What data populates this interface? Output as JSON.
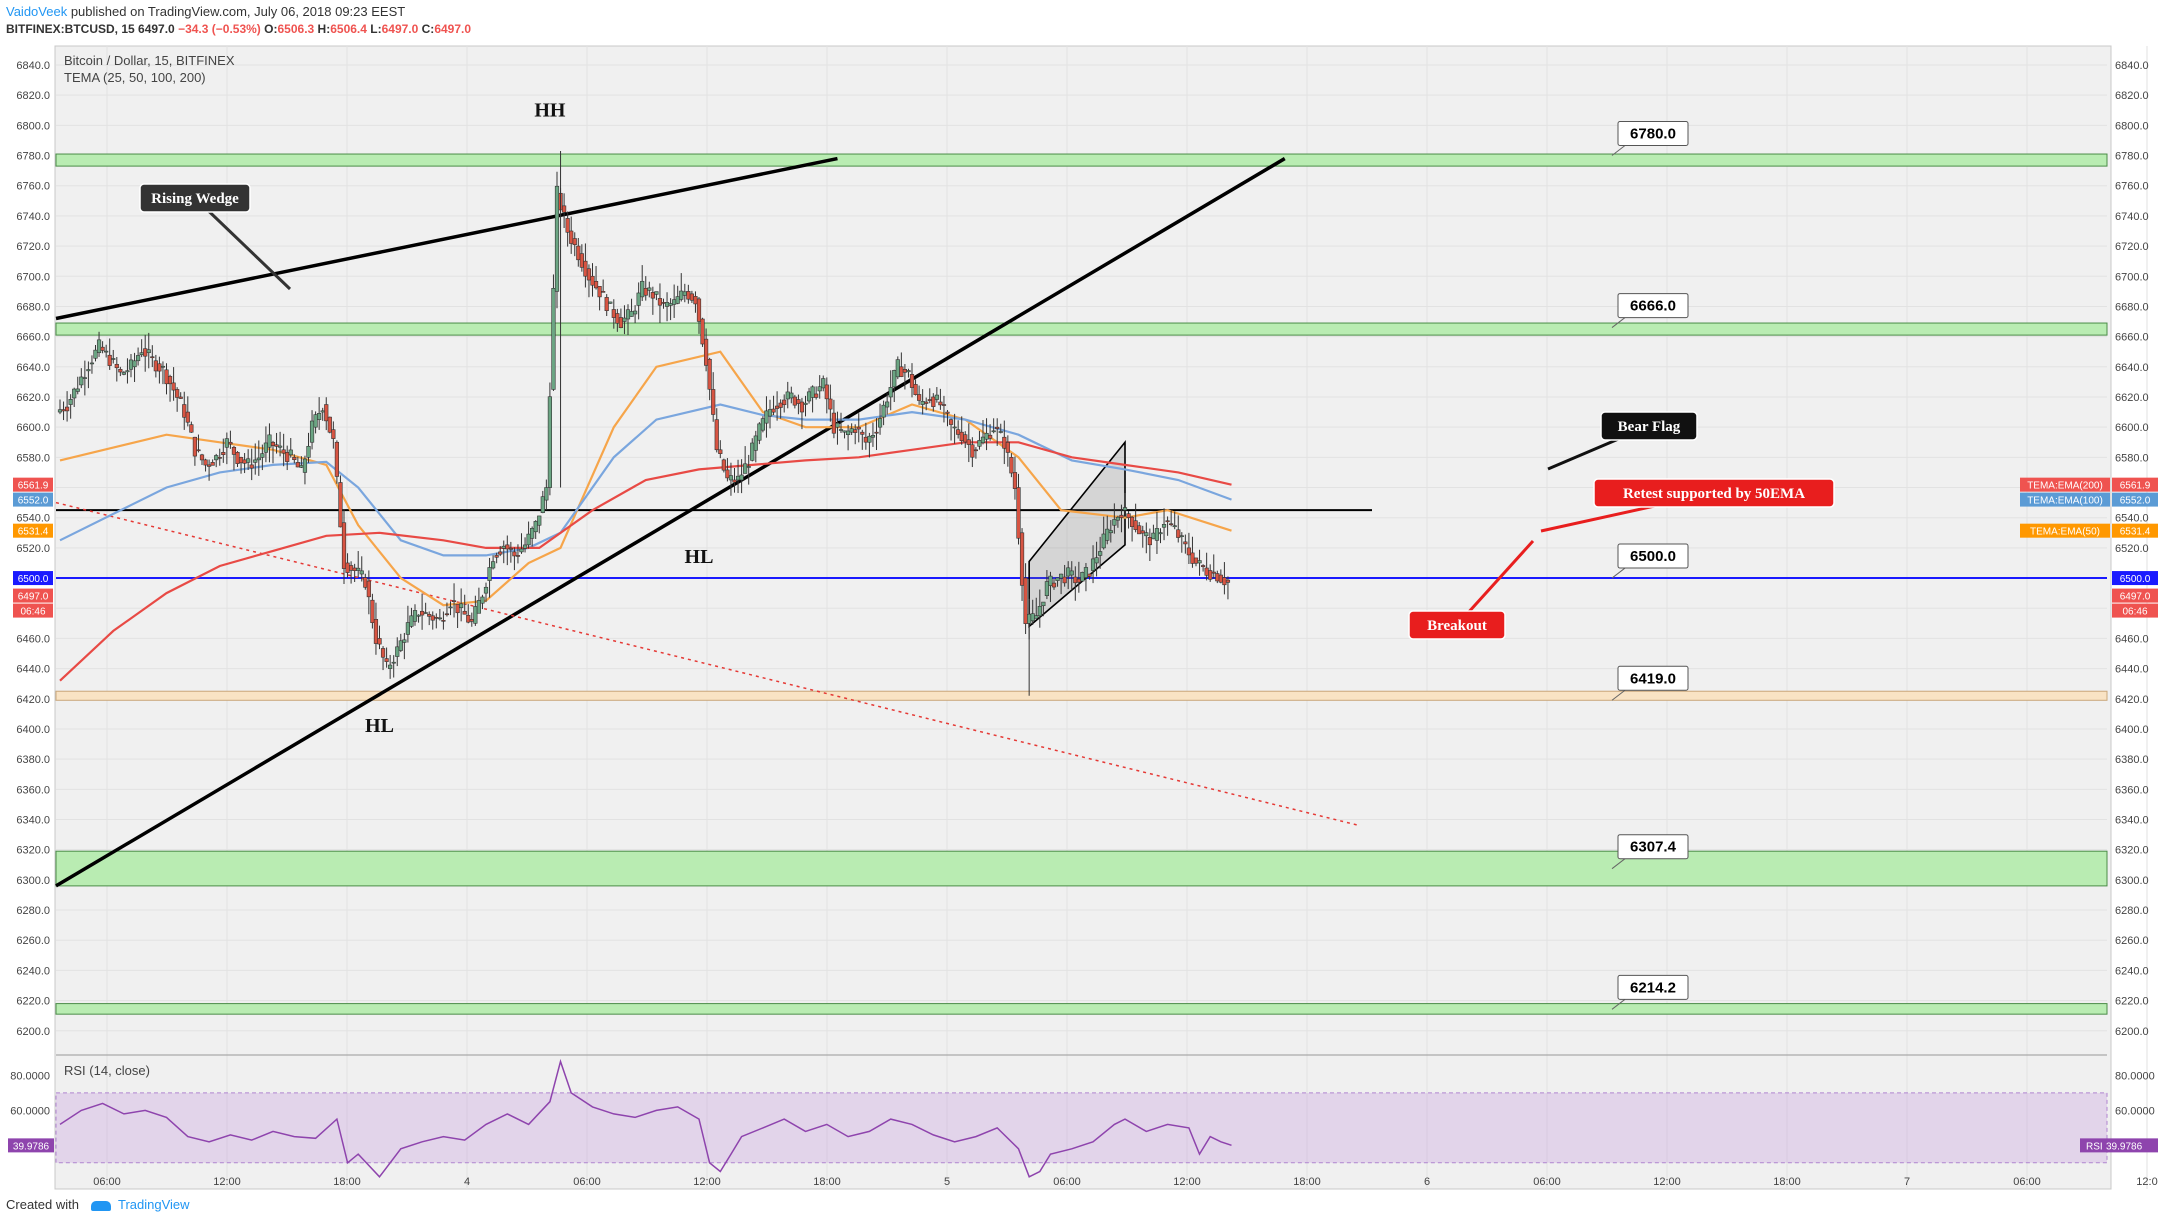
{
  "header": {
    "author": "VaidoVeek",
    "published": "published on TradingView.com, July 06, 2018 09:23 EEST",
    "symbol": "BITFINEX:BTCUSD, 15",
    "last": "6497.0",
    "change": "−34.3 (−0.53%)",
    "o_label": "O:",
    "o": "6506.3",
    "h_label": "H:",
    "h": "6506.4",
    "l_label": "L:",
    "l": "6497.0",
    "c_label": "C:",
    "c": "6497.0"
  },
  "footer": {
    "created_with": "Created with",
    "brand": "TradingView"
  },
  "chart_data": [
    {
      "type": "candlestick",
      "title": "Bitcoin / Dollar, 15, BITFINEX",
      "indicator_label": "TEMA (25, 50, 100, 200)",
      "ylim": [
        6190,
        6850
      ],
      "y_ticks": [
        "6840.0",
        "6820.0",
        "6800.0",
        "6780.0",
        "6760.0",
        "6740.0",
        "6720.0",
        "6700.0",
        "6680.0",
        "6660.0",
        "6640.0",
        "6620.0",
        "6600.0",
        "6580.0",
        "6560.0",
        "6540.0",
        "6520.0",
        "6500.0",
        "6480.0",
        "6460.0",
        "6440.0",
        "6420.0",
        "6400.0",
        "6380.0",
        "6360.0",
        "6340.0",
        "6320.0",
        "6300.0",
        "6280.0",
        "6260.0",
        "6240.0",
        "6220.0",
        "6200.0"
      ],
      "x_ticks": [
        "06:00",
        "12:00",
        "18:00",
        "4",
        "06:00",
        "12:00",
        "18:00",
        "5",
        "06:00",
        "12:00",
        "18:00",
        "6",
        "06:00",
        "12:00",
        "18:00",
        "7",
        "06:00",
        "12:0"
      ],
      "x_time_hours": [
        6,
        12,
        18,
        24,
        30,
        36,
        42,
        48,
        54,
        60,
        66,
        72,
        78,
        84,
        90,
        96,
        102,
        108
      ],
      "time_axis_origin": "July 3 00:00",
      "price_path": [
        [
          0,
          6610
        ],
        [
          1,
          6615
        ],
        [
          2,
          6628
        ],
        [
          3,
          6642
        ],
        [
          4,
          6653
        ],
        [
          5,
          6645
        ],
        [
          6,
          6635
        ],
        [
          7,
          6640
        ],
        [
          8,
          6652
        ],
        [
          9,
          6644
        ],
        [
          10,
          6638
        ],
        [
          11,
          6625
        ],
        [
          12,
          6610
        ],
        [
          13,
          6585
        ],
        [
          14,
          6575
        ],
        [
          15,
          6580
        ],
        [
          16,
          6590
        ],
        [
          17,
          6580
        ],
        [
          18,
          6575
        ],
        [
          19,
          6580
        ],
        [
          20,
          6590
        ],
        [
          21,
          6585
        ],
        [
          22,
          6580
        ],
        [
          23,
          6570
        ],
        [
          24,
          6600
        ],
        [
          25,
          6615
        ],
        [
          26,
          6590
        ],
        [
          27,
          6510
        ],
        [
          28,
          6505
        ],
        [
          29,
          6498
        ],
        [
          30,
          6460
        ],
        [
          31,
          6440
        ],
        [
          32,
          6452
        ],
        [
          33,
          6468
        ],
        [
          34,
          6478
        ],
        [
          35,
          6475
        ],
        [
          36,
          6472
        ],
        [
          37,
          6485
        ],
        [
          38,
          6478
        ],
        [
          39,
          6470
        ],
        [
          40,
          6490
        ],
        [
          41,
          6515
        ],
        [
          42,
          6522
        ],
        [
          43,
          6515
        ],
        [
          44,
          6522
        ],
        [
          45,
          6535
        ],
        [
          46,
          6560
        ],
        [
          47,
          6755
        ],
        [
          48,
          6730
        ],
        [
          49,
          6715
        ],
        [
          50,
          6700
        ],
        [
          51,
          6690
        ],
        [
          52,
          6678
        ],
        [
          53,
          6670
        ],
        [
          54,
          6675
        ],
        [
          55,
          6692
        ],
        [
          56,
          6688
        ],
        [
          57,
          6680
        ],
        [
          58,
          6682
        ],
        [
          59,
          6690
        ],
        [
          60,
          6685
        ],
        [
          61,
          6645
        ],
        [
          62,
          6585
        ],
        [
          63,
          6565
        ],
        [
          64,
          6565
        ],
        [
          65,
          6578
        ],
        [
          66,
          6598
        ],
        [
          67,
          6612
        ],
        [
          68,
          6618
        ],
        [
          69,
          6620
        ],
        [
          70,
          6615
        ],
        [
          71,
          6622
        ],
        [
          72,
          6628
        ],
        [
          73,
          6600
        ],
        [
          74,
          6595
        ],
        [
          75,
          6600
        ],
        [
          76,
          6590
        ],
        [
          77,
          6600
        ],
        [
          78,
          6620
        ],
        [
          79,
          6640
        ],
        [
          80,
          6635
        ],
        [
          81,
          6615
        ],
        [
          82,
          6620
        ],
        [
          83,
          6615
        ],
        [
          84,
          6600
        ],
        [
          85,
          6595
        ],
        [
          86,
          6585
        ],
        [
          87,
          6592
        ],
        [
          88,
          6600
        ],
        [
          89,
          6590
        ],
        [
          90,
          6560
        ],
        [
          91,
          6470
        ],
        [
          92,
          6475
        ],
        [
          93,
          6495
        ],
        [
          94,
          6500
        ],
        [
          95,
          6502
        ],
        [
          96,
          6498
        ],
        [
          97,
          6505
        ],
        [
          98,
          6520
        ],
        [
          99,
          6535
        ],
        [
          100,
          6545
        ],
        [
          101,
          6538
        ],
        [
          102,
          6528
        ],
        [
          103,
          6525
        ],
        [
          104,
          6538
        ],
        [
          105,
          6532
        ],
        [
          106,
          6520
        ],
        [
          107,
          6510
        ],
        [
          108,
          6505
        ],
        [
          109,
          6502
        ],
        [
          110,
          6497
        ]
      ],
      "wick_extremes": {
        "high": 6783,
        "low": 6422
      },
      "ema_levels_right": [
        {
          "label": "TEMA:EMA(200)",
          "value": "6561.9",
          "color": "#ef5350"
        },
        {
          "label": "TEMA:EMA(100)",
          "value": "6552.0",
          "color": "#5b9bd5"
        },
        {
          "label": "TEMA:EMA(50)",
          "value": "6531.4",
          "color": "#ff9800"
        }
      ],
      "ema_series": [
        {
          "label": "TEMA:EMA(50)",
          "color": "#f6a54a",
          "points": [
            [
              0,
              6578
            ],
            [
              10,
              6595
            ],
            [
              15,
              6590
            ],
            [
              20,
              6585
            ],
            [
              25,
              6575
            ],
            [
              28,
              6535
            ],
            [
              32,
              6500
            ],
            [
              36,
              6482
            ],
            [
              40,
              6485
            ],
            [
              44,
              6510
            ],
            [
              47,
              6520
            ],
            [
              52,
              6600
            ],
            [
              56,
              6640
            ],
            [
              62,
              6650
            ],
            [
              66,
              6610
            ],
            [
              70,
              6600
            ],
            [
              75,
              6600
            ],
            [
              80,
              6615
            ],
            [
              85,
              6605
            ],
            [
              90,
              6580
            ],
            [
              94,
              6545
            ],
            [
              100,
              6540
            ],
            [
              104,
              6545
            ],
            [
              110,
              6531.4
            ]
          ]
        },
        {
          "label": "TEMA:EMA(100)",
          "color": "#7aa6de",
          "points": [
            [
              0,
              6525
            ],
            [
              10,
              6560
            ],
            [
              15,
              6570
            ],
            [
              20,
              6575
            ],
            [
              25,
              6577
            ],
            [
              28,
              6560
            ],
            [
              32,
              6525
            ],
            [
              36,
              6515
            ],
            [
              40,
              6515
            ],
            [
              44,
              6520
            ],
            [
              47,
              6530
            ],
            [
              52,
              6580
            ],
            [
              56,
              6605
            ],
            [
              62,
              6615
            ],
            [
              66,
              6608
            ],
            [
              70,
              6605
            ],
            [
              75,
              6605
            ],
            [
              80,
              6610
            ],
            [
              85,
              6605
            ],
            [
              90,
              6595
            ],
            [
              95,
              6578
            ],
            [
              100,
              6572
            ],
            [
              105,
              6565
            ],
            [
              110,
              6552
            ]
          ]
        },
        {
          "label": "TEMA:EMA(200)",
          "color": "#e84a45",
          "points": [
            [
              0,
              6432
            ],
            [
              5,
              6465
            ],
            [
              10,
              6490
            ],
            [
              15,
              6508
            ],
            [
              20,
              6518
            ],
            [
              25,
              6528
            ],
            [
              30,
              6530
            ],
            [
              36,
              6525
            ],
            [
              40,
              6520
            ],
            [
              45,
              6520
            ],
            [
              50,
              6545
            ],
            [
              55,
              6565
            ],
            [
              60,
              6572
            ],
            [
              65,
              6575
            ],
            [
              70,
              6578
            ],
            [
              75,
              6580
            ],
            [
              80,
              6585
            ],
            [
              85,
              6590
            ],
            [
              90,
              6590
            ],
            [
              95,
              6580
            ],
            [
              100,
              6575
            ],
            [
              105,
              6570
            ],
            [
              110,
              6561.9
            ]
          ]
        }
      ],
      "price_tags_right": [
        {
          "value": "6561.9",
          "color": "#ef5350"
        },
        {
          "value": "6552.0",
          "color": "#5b9bd5"
        },
        {
          "value": "6531.4",
          "color": "#ff9800"
        },
        {
          "value": "6500.0",
          "color": "#1a1aff"
        },
        {
          "value": "6497.0",
          "color": "#ef5350"
        },
        {
          "value": "06:46",
          "color": "#ef5350"
        }
      ],
      "levels": [
        {
          "price": 6780.0,
          "label": "6780.0",
          "band": [
            6773,
            6781
          ]
        },
        {
          "price": 6666.0,
          "label": "6666.0",
          "band": [
            6661,
            6669
          ]
        },
        {
          "price": 6500.0,
          "label": "6500.0",
          "band": null
        },
        {
          "price": 6419.0,
          "label": "6419.0",
          "band": [
            6419,
            6425
          ]
        },
        {
          "price": 6307.4,
          "label": "6307.4",
          "band": [
            6296,
            6319
          ]
        },
        {
          "price": 6214.2,
          "label": "6214.2",
          "band": [
            6211,
            6218
          ]
        }
      ],
      "horizontal_line": 6545,
      "annotations": [
        {
          "text": "HH",
          "t": 46,
          "p": 6806
        },
        {
          "text": "HL",
          "t": 30,
          "p": 6398
        },
        {
          "text": "HL",
          "t": 60,
          "p": 6510
        }
      ],
      "callouts": [
        {
          "text": "Rising Wedge",
          "style": "dark"
        },
        {
          "text": "Bear Flag",
          "style": "black"
        },
        {
          "text": "Retest supported by 50EMA",
          "style": "red"
        },
        {
          "text": "Breakout",
          "style": "red"
        }
      ],
      "trendlines": [
        {
          "from": [
            0,
            6672
          ],
          "to": [
            73,
            6778
          ]
        },
        {
          "from": [
            0,
            6296
          ],
          "to": [
            115,
            6778
          ]
        },
        {
          "from": [
            0,
            6550
          ],
          "to": [
            122,
            6336
          ]
        }
      ]
    },
    {
      "type": "line",
      "title": "RSI (14, close)",
      "ylim": [
        15,
        90
      ],
      "y_ticks": [
        "80.0000",
        "60.0000"
      ],
      "current": "39.9786",
      "current_label": "RSI",
      "band": [
        30,
        70
      ],
      "points": [
        [
          0,
          52
        ],
        [
          2,
          60
        ],
        [
          4,
          64
        ],
        [
          6,
          58
        ],
        [
          8,
          60
        ],
        [
          10,
          56
        ],
        [
          12,
          45
        ],
        [
          14,
          42
        ],
        [
          16,
          46
        ],
        [
          18,
          43
        ],
        [
          20,
          48
        ],
        [
          22,
          45
        ],
        [
          24,
          44
        ],
        [
          26,
          55
        ],
        [
          27,
          30
        ],
        [
          28,
          35
        ],
        [
          30,
          22
        ],
        [
          32,
          38
        ],
        [
          34,
          42
        ],
        [
          36,
          45
        ],
        [
          38,
          43
        ],
        [
          40,
          52
        ],
        [
          42,
          58
        ],
        [
          44,
          52
        ],
        [
          46,
          65
        ],
        [
          47,
          88
        ],
        [
          48,
          70
        ],
        [
          50,
          62
        ],
        [
          52,
          58
        ],
        [
          54,
          56
        ],
        [
          56,
          60
        ],
        [
          58,
          62
        ],
        [
          60,
          55
        ],
        [
          61,
          30
        ],
        [
          62,
          25
        ],
        [
          63,
          35
        ],
        [
          64,
          45
        ],
        [
          66,
          50
        ],
        [
          68,
          55
        ],
        [
          70,
          48
        ],
        [
          72,
          52
        ],
        [
          74,
          45
        ],
        [
          76,
          48
        ],
        [
          78,
          55
        ],
        [
          80,
          52
        ],
        [
          82,
          46
        ],
        [
          84,
          42
        ],
        [
          86,
          45
        ],
        [
          88,
          50
        ],
        [
          90,
          38
        ],
        [
          91,
          22
        ],
        [
          92,
          25
        ],
        [
          93,
          35
        ],
        [
          95,
          38
        ],
        [
          97,
          42
        ],
        [
          99,
          52
        ],
        [
          100,
          55
        ],
        [
          102,
          48
        ],
        [
          104,
          52
        ],
        [
          106,
          50
        ],
        [
          107,
          35
        ],
        [
          108,
          45
        ],
        [
          109,
          42
        ],
        [
          110,
          40
        ]
      ]
    }
  ]
}
